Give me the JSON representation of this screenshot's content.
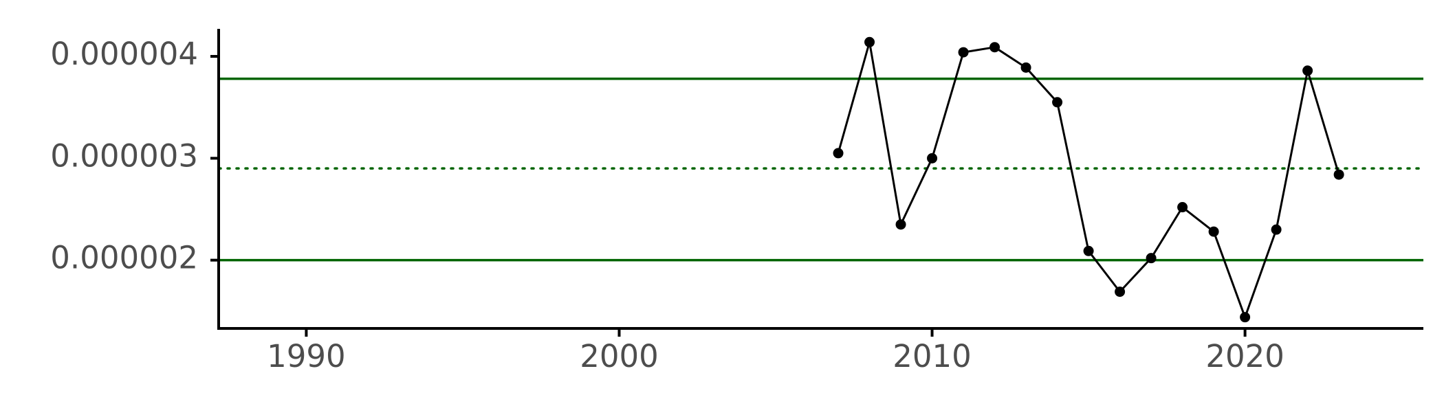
{
  "chart_data": {
    "type": "line",
    "title": "",
    "xlabel": "",
    "ylabel": "",
    "xlim": [
      1987.2,
      2025.7
    ],
    "ylim": [
      1.33e-06,
      4.27e-06
    ],
    "x_ticks": [
      {
        "value": 1990,
        "label": "1990"
      },
      {
        "value": 2000,
        "label": "2000"
      },
      {
        "value": 2010,
        "label": "2010"
      },
      {
        "value": 2020,
        "label": "2020"
      }
    ],
    "y_ticks": [
      {
        "value": 2e-06,
        "label": "0.000002"
      },
      {
        "value": 3e-06,
        "label": "0.000003"
      },
      {
        "value": 4e-06,
        "label": "0.000004"
      }
    ],
    "grid": false,
    "legend": "none",
    "reference_lines": [
      {
        "value": 3.78e-06,
        "style": "solid",
        "color": "#006400"
      },
      {
        "value": 2.9e-06,
        "style": "dotted",
        "color": "#006400"
      },
      {
        "value": 2e-06,
        "style": "solid",
        "color": "#006400"
      }
    ],
    "series": [
      {
        "color": "#000000",
        "x": [
          2007,
          2008,
          2009,
          2010,
          2011,
          2012,
          2013,
          2014,
          2015,
          2016,
          2017,
          2018,
          2019,
          2020,
          2021,
          2022,
          2023
        ],
        "values": [
          3.05e-06,
          4.14e-06,
          2.35e-06,
          3e-06,
          4.04e-06,
          4.09e-06,
          3.89e-06,
          3.55e-06,
          2.09e-06,
          1.69e-06,
          2.02e-06,
          2.52e-06,
          2.28e-06,
          1.44e-06,
          2.3e-06,
          3.86e-06,
          2.84e-06
        ]
      }
    ]
  }
}
